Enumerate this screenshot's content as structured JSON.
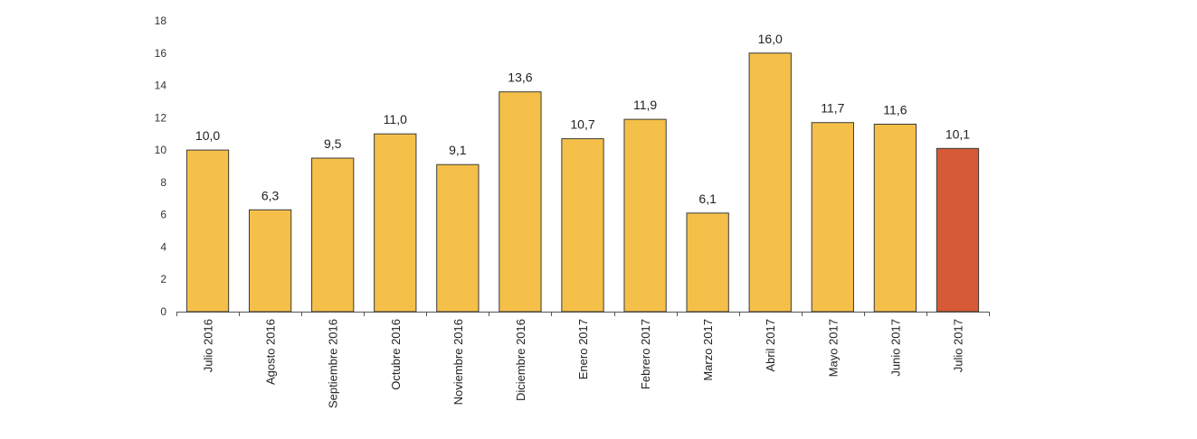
{
  "chart_data": {
    "type": "bar",
    "categories": [
      "Julio 2016",
      "Agosto 2016",
      "Septiembre 2016",
      "Octubre 2016",
      "Noviembre 2016",
      "Diciembre 2016",
      "Enero 2017",
      "Febrero 2017",
      "Marzo 2017",
      "Abril 2017",
      "Mayo 2017",
      "Junio 2017",
      "Julio 2017"
    ],
    "values": [
      10.0,
      6.3,
      9.5,
      11.0,
      9.1,
      13.6,
      10.7,
      11.9,
      6.1,
      16.0,
      11.7,
      11.6,
      10.1
    ],
    "value_labels": [
      "10,0",
      "6,3",
      "9,5",
      "11,0",
      "9,1",
      "13,6",
      "10,7",
      "11,9",
      "6,1",
      "16,0",
      "11,7",
      "11,6",
      "10,1"
    ],
    "title": "",
    "xlabel": "",
    "ylabel": "",
    "ylim": [
      0,
      18
    ],
    "yticks": [
      0,
      2,
      4,
      6,
      8,
      10,
      12,
      14,
      16,
      18
    ],
    "grid": false,
    "legend": "none",
    "colors": {
      "bar": "#F5C04A",
      "highlight": "#D65A35",
      "bar_stroke": "#3a3a3a",
      "axis": "#555555"
    },
    "highlight_index": 12
  }
}
